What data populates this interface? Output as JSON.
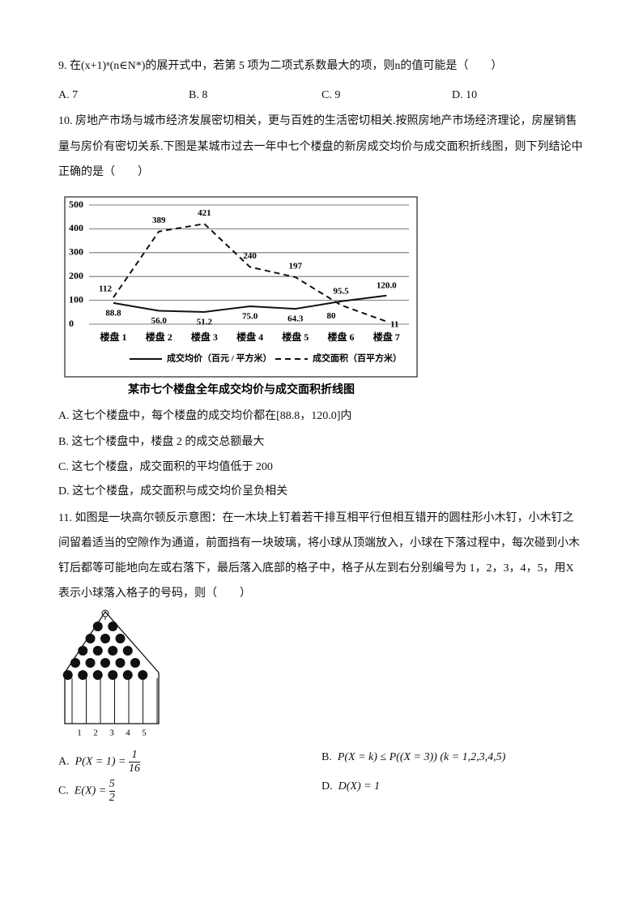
{
  "q9": {
    "stem": "9. 在(x+1)ⁿ(n∈N*)的展开式中，若第 5 项为二项式系数最大的项，则n的值可能是（　　）",
    "options": [
      "A. 7",
      "B. 8",
      "C. 9",
      "D. 10"
    ]
  },
  "q10": {
    "stem": [
      "10. 房地产市场与城市经济发展密切相关，更与百姓的生活密切相关.按照房地产市场经济理论，房屋销售",
      "量与房价有密切关系.下图是某城市过去一年中七个楼盘的新房成交均价与成交面积折线图，则下列结论中",
      "正确的是（　　）"
    ],
    "options": [
      "A. 这七个楼盘中，每个楼盘的成交均价都在[88.8，120.0]内",
      "B. 这七个楼盘中，楼盘 2 的成交总额最大",
      "C. 这七个楼盘，成交面积的平均值低于 200",
      "D. 这七个楼盘，成交面积与成交均价呈负相关"
    ]
  },
  "chart_data": {
    "type": "line",
    "title": "某市七个楼盘全年成交均价与成交面积折线图",
    "categories": [
      "楼盘 1",
      "楼盘 2",
      "楼盘 3",
      "楼盘 4",
      "楼盘 5",
      "楼盘 6",
      "楼盘 7"
    ],
    "series": [
      {
        "name": "成交均价（百元 / 平方米）",
        "color": "#111111",
        "dash": false,
        "values": [
          88.8,
          56.0,
          51.2,
          75.0,
          64.3,
          95.5,
          120.0
        ],
        "value_labels": [
          "88.8",
          "56.0",
          "51.2",
          "75.0",
          "64.3",
          "95.5",
          "120.0"
        ]
      },
      {
        "name": "成交面积（百平方米）",
        "color": "#111111",
        "dash": true,
        "values": [
          112,
          389,
          421,
          240,
          197,
          80,
          11
        ]
      }
    ],
    "ylim": [
      0,
      500
    ],
    "yticks": [
      0,
      100,
      200,
      300,
      400,
      500
    ],
    "grid": true
  },
  "q11": {
    "stem": [
      "11. 如图是一块高尔顿反示意图：在一木块上钉着若干排互相平行但相互错开的圆柱形小木钉，小木钉之",
      "间留着适当的空隙作为通道，前面挡有一块玻璃，将小球从顶端放入，小球在下落过程中，每次碰到小木",
      "钉后都等可能地向左或右落下，最后落入底部的格子中，格子从左到右分别编号为 1，2，3，4，5，用X",
      "表示小球落入格子的号码，则（　　）"
    ],
    "bins": [
      "1",
      "2",
      "3",
      "4",
      "5"
    ],
    "options": {
      "A": {
        "label": "A.",
        "lhs": "P(X = 1) =",
        "num": "1",
        "den": "16"
      },
      "B": {
        "label": "B.",
        "text": "P(X = k) ≤ P((X = 3)) (k = 1,2,3,4,5)"
      },
      "C": {
        "label": "C.",
        "lhs": "E(X) =",
        "num": "5",
        "den": "2"
      },
      "D": {
        "label": "D.",
        "text": "D(X) = 1"
      }
    }
  }
}
